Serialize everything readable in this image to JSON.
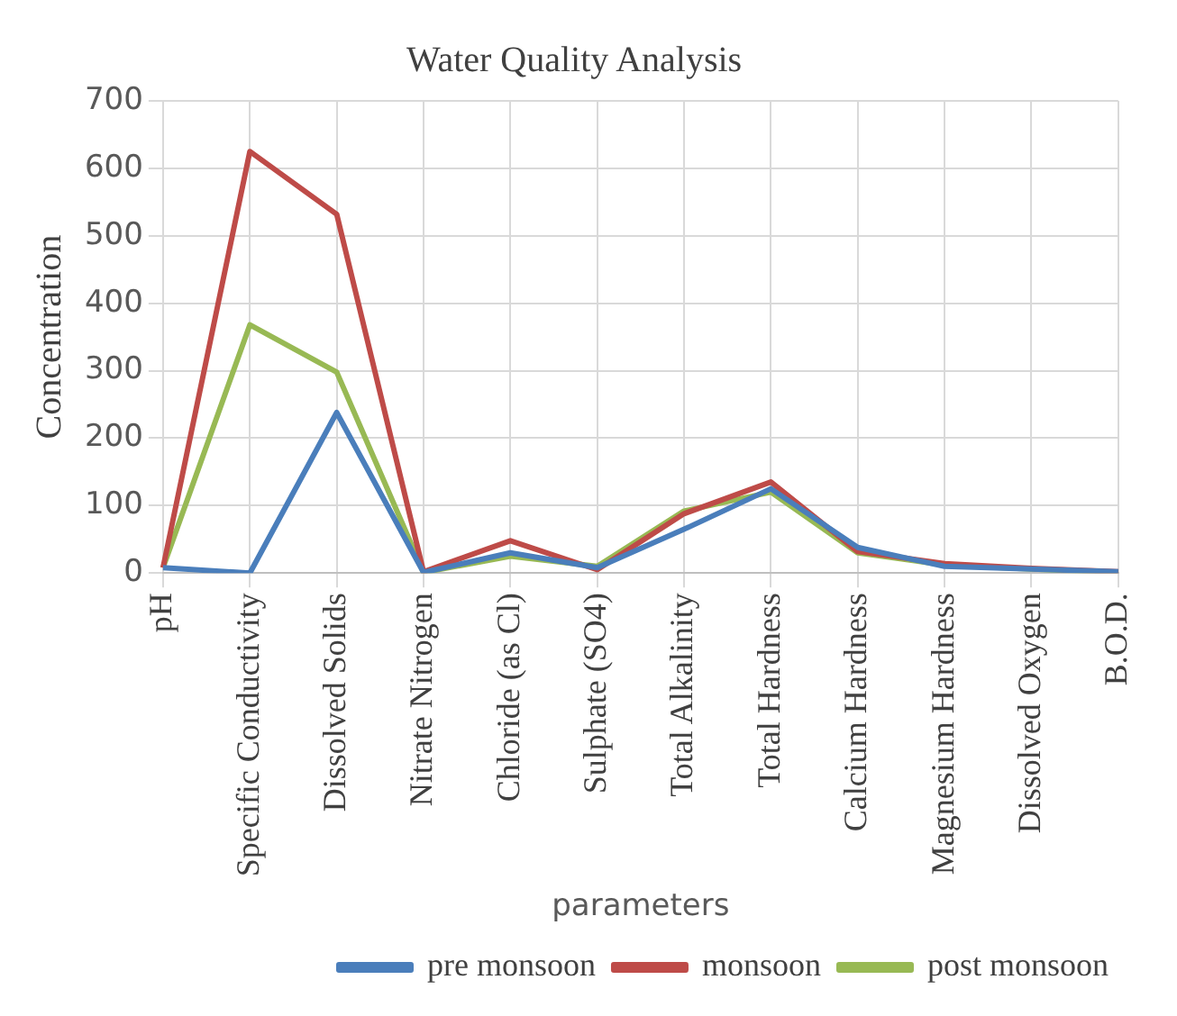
{
  "chart_data": {
    "type": "line",
    "title": "Water Quality Analysis",
    "xlabel": "parameters",
    "ylabel": "Concentration",
    "categories": [
      "pH",
      "Specific Conductivity",
      "Dissolved Solids",
      "Nitrate Nitrogen",
      "Chloride (as Cl)",
      "Sulphate (SO4)",
      "Total Alkalinity",
      "Total Hardness",
      "Calcium Hardness",
      "Magnesium Hardness",
      "Dissolved Oxygen",
      "B.O.D."
    ],
    "series": [
      {
        "name": "pre monsoon",
        "color": "#4a7ebb",
        "values": [
          8,
          0,
          238,
          1,
          30,
          8,
          65,
          125,
          38,
          10,
          6,
          2
        ]
      },
      {
        "name": "monsoon",
        "color": "#be4b48",
        "values": [
          8,
          625,
          532,
          2,
          48,
          5,
          88,
          135,
          32,
          14,
          7,
          2
        ]
      },
      {
        "name": "post monsoon",
        "color": "#98b954",
        "values": [
          8,
          368,
          298,
          1,
          25,
          10,
          92,
          120,
          30,
          12,
          6,
          1
        ]
      }
    ],
    "ylim": [
      0,
      700
    ],
    "yticks": [
      0,
      100,
      200,
      300,
      400,
      500,
      600,
      700
    ],
    "grid": true,
    "legend": "bottom right",
    "marker": "none",
    "line_style": "solid"
  }
}
